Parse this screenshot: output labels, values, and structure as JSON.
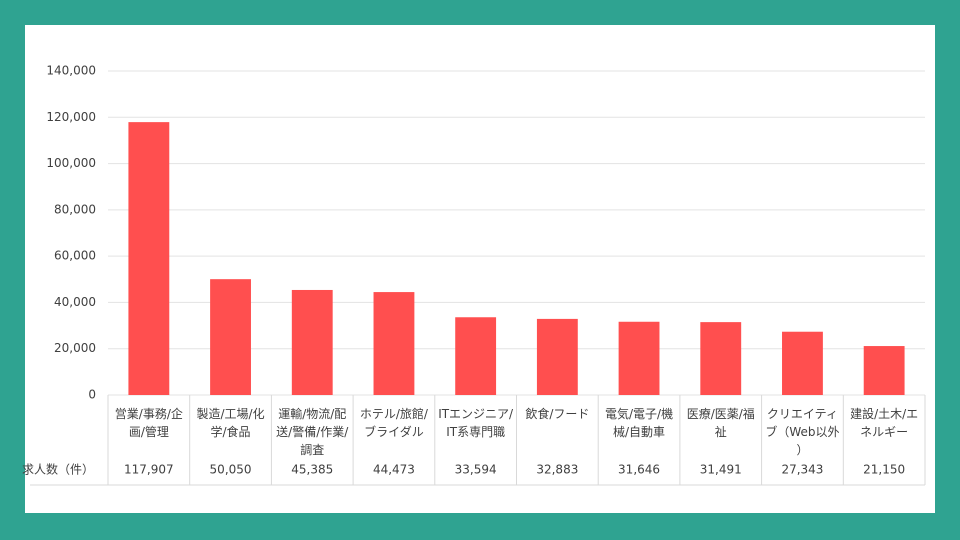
{
  "chart_data": {
    "type": "bar",
    "categories": [
      "営業/事務/企画/管理",
      "製造/工場/化学/食品",
      "運輸/物流/配送/警備/作業/調査",
      "ホテル/旅館/ブライダル",
      "ITエンジニア/IT系専門職",
      "飲食/フード",
      "電気/電子/機械/自動車",
      "医療/医薬/福祉",
      "クリエイティブ（Web以外）",
      "建設/土木/エネルギー"
    ],
    "values": [
      117907,
      50050,
      45385,
      44473,
      33594,
      32883,
      31646,
      31491,
      27343,
      21150
    ],
    "value_labels": [
      "117,907",
      "50,050",
      "45,385",
      "44,473",
      "33,594",
      "32,883",
      "31,646",
      "31,491",
      "27,343",
      "21,150"
    ],
    "table_row_label": "求人数（件）",
    "color": "#ff4f4f",
    "ylim": [
      0,
      140000
    ],
    "yticks": [
      0,
      {
        "value": 20000,
        "label": "20,000"
      },
      {
        "value": 40000,
        "label": "40,000"
      },
      {
        "value": 60000,
        "label": "60,000"
      },
      {
        "value": 80000,
        "label": "80,000"
      },
      {
        "value": 100000,
        "label": "100,000"
      },
      {
        "value": 120000,
        "label": "120,000"
      },
      {
        "value": 140000,
        "label": "140,000"
      }
    ],
    "grid": true
  }
}
